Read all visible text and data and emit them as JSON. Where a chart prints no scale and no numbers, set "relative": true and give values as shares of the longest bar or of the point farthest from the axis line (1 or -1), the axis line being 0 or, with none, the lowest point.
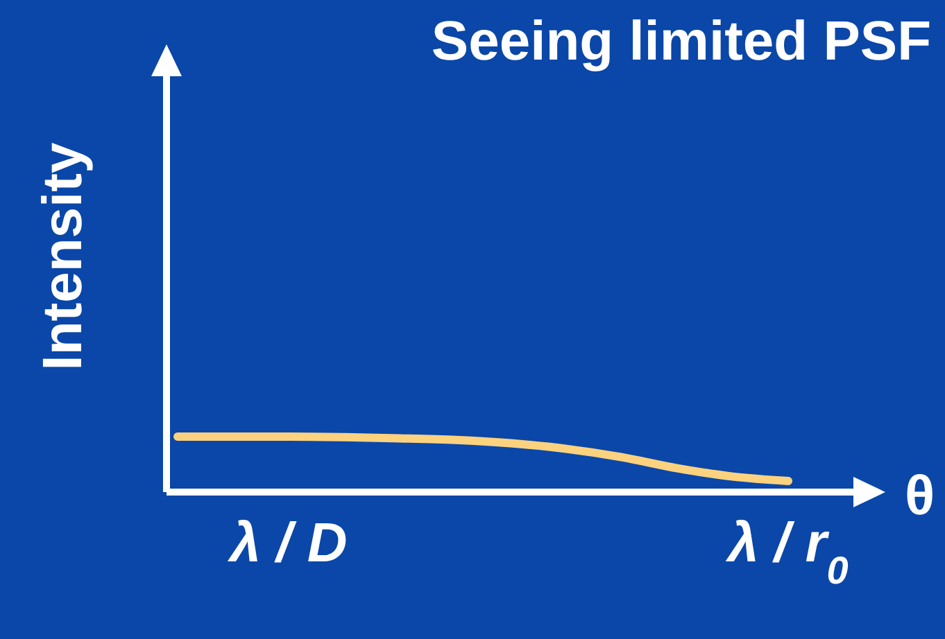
{
  "chart_data": {
    "type": "line",
    "title": "Seeing limited PSF",
    "xlabel": "θ",
    "ylabel": "Intensity",
    "relative": true,
    "categories": [
      null,
      null,
      "λ / D",
      null,
      null,
      null,
      null,
      null,
      null,
      null,
      null,
      "λ / r$_{0}$"
    ],
    "series": [
      {
        "color": "#fcd27e",
        "values": [
          1,
          1,
          1,
          0.99,
          0.97,
          0.94,
          0.88,
          0.78,
          0.63,
          0.43,
          0.28,
          0.2
        ]
      }
    ],
    "grid": false,
    "legend": false,
    "marker": "none",
    "line_style": "solid",
    "tick_labels": "x"
  }
}
